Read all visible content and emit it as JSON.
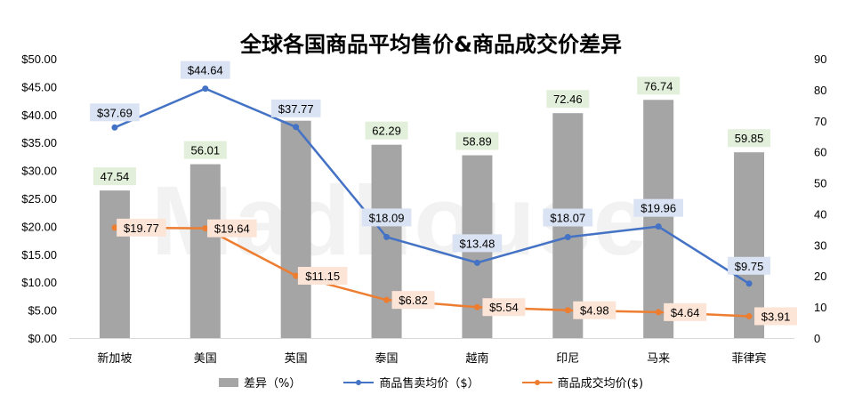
{
  "chart_data": {
    "type": "bar+line",
    "title": "全球各国商品平均售价&商品成交价差异",
    "watermark": "Madhouse",
    "categories": [
      "新加坡",
      "美国",
      "英国",
      "泰国",
      "越南",
      "印尼",
      "马来",
      "菲律宾"
    ],
    "y_left": {
      "ylim": [
        0,
        50
      ],
      "ticks": [
        "$0.00",
        "$5.00",
        "$10.00",
        "$15.00",
        "$20.00",
        "$25.00",
        "$30.00",
        "$35.00",
        "$40.00",
        "$45.00",
        "$50.00"
      ]
    },
    "y_right": {
      "ylim": [
        0,
        90
      ],
      "ticks": [
        "0",
        "10",
        "20",
        "30",
        "40",
        "50",
        "60",
        "70",
        "80",
        "90"
      ]
    },
    "series": [
      {
        "name": "差异（%）",
        "kind": "bar",
        "axis": "right",
        "color": "#a5a5a5",
        "label_bg": "#e2efda",
        "values": [
          47.54,
          56.01,
          70.02,
          62.29,
          58.89,
          72.46,
          76.74,
          59.85
        ],
        "labels": [
          "47.54",
          "56.01",
          "",
          "62.29",
          "58.89",
          "72.46",
          "76.74",
          "59.85"
        ]
      },
      {
        "name": "商品售卖均价（$）",
        "kind": "line",
        "axis": "left",
        "color": "#4472c4",
        "label_bg": "#dae3f3",
        "values": [
          37.69,
          44.64,
          37.77,
          18.09,
          13.48,
          18.07,
          19.96,
          9.75
        ],
        "labels": [
          "$37.69",
          "$44.64",
          "$37.77",
          "$18.09",
          "$13.48",
          "$18.07",
          "$19.96",
          "$9.75"
        ]
      },
      {
        "name": "商品成交均价($)",
        "kind": "line",
        "axis": "left",
        "color": "#ed7d31",
        "label_bg": "#fce4d6",
        "values": [
          19.77,
          19.64,
          11.15,
          6.82,
          5.54,
          4.98,
          4.64,
          3.91
        ],
        "labels": [
          "$19.77",
          "$19.64",
          "$11.15",
          "$6.82",
          "$5.54",
          "$4.98",
          "$4.64",
          "$3.91"
        ]
      }
    ],
    "legend": {
      "position": "bottom",
      "items": [
        "差异（%）",
        "商品售卖均价（$）",
        "商品成交均价($)"
      ]
    },
    "grid": false
  }
}
